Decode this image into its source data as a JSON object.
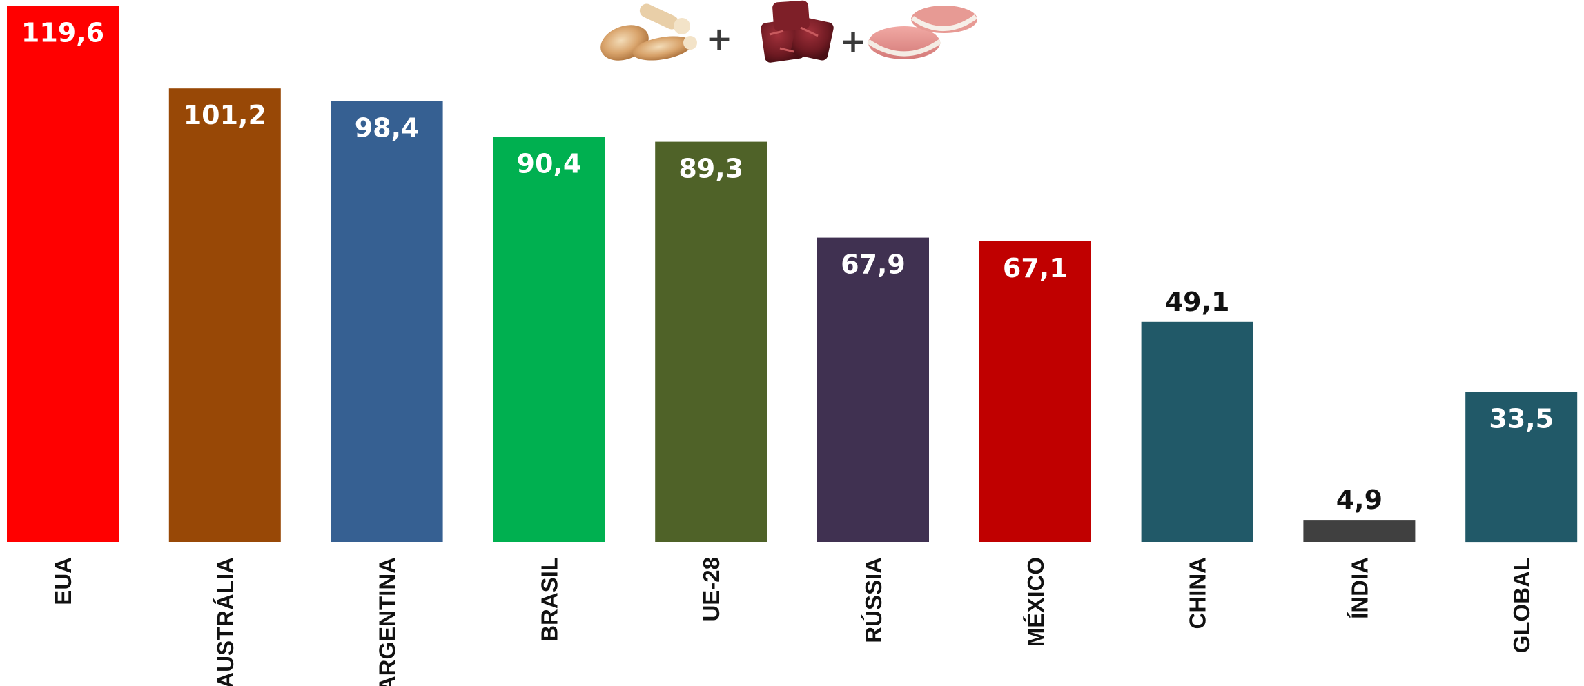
{
  "chart_data": {
    "type": "bar",
    "title": "",
    "xlabel": "",
    "ylabel": "",
    "ylim": [
      0,
      120
    ],
    "grid": false,
    "legend": "none",
    "categories": [
      "EUA",
      "AUSTRÁLIA",
      "ARGENTINA",
      "BRASIL",
      "UE-28",
      "RÚSSIA",
      "MÉXICO",
      "CHINA",
      "ÍNDIA",
      "GLOBAL"
    ],
    "values": [
      119.6,
      101.2,
      98.4,
      90.4,
      89.3,
      67.9,
      67.1,
      49.1,
      4.9,
      33.5
    ],
    "value_labels": [
      "119,6",
      "101,2",
      "98,4",
      "90,4",
      "89,3",
      "67,9",
      "67,1",
      "49,1",
      "4,9",
      "33,5"
    ],
    "colors": [
      "#ff0000",
      "#984806",
      "#366092",
      "#00b050",
      "#4f6228",
      "#403151",
      "#c00000",
      "#215968",
      "#404040",
      "#215968"
    ],
    "label_placement": [
      "inside",
      "inside",
      "inside",
      "inside",
      "inside",
      "inside",
      "inside",
      "above",
      "above",
      "inside"
    ],
    "label_colors": {
      "inside": "#ffffff",
      "above": "#111111"
    }
  },
  "header_icons": {
    "items": [
      "chicken-drumstick-icon",
      "beef-cubes-icon",
      "pork-steak-icon"
    ],
    "separator": "+"
  }
}
